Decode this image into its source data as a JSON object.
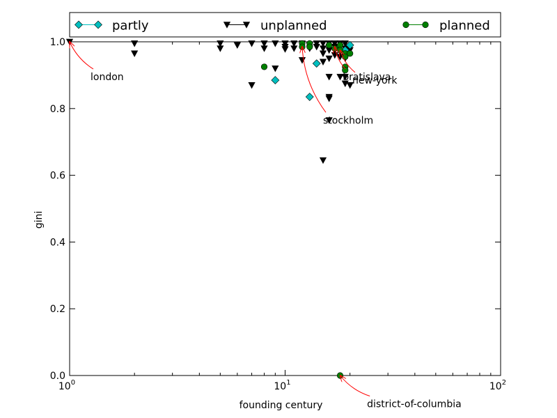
{
  "chart_data": {
    "type": "scatter",
    "title": "",
    "xlabel": "founding century",
    "ylabel": "gini",
    "xscale": "log",
    "xlim": [
      1,
      100
    ],
    "ylim": [
      0.0,
      1.0
    ],
    "x_tick_labels": [
      {
        "value": 1,
        "base": "10",
        "exp": "0"
      },
      {
        "value": 10,
        "base": "10",
        "exp": "1"
      },
      {
        "value": 100,
        "base": "10",
        "exp": "2"
      }
    ],
    "y_ticks": [
      0.0,
      0.2,
      0.4,
      0.6,
      0.8,
      1.0
    ],
    "y_tick_labels": [
      "0.0",
      "0.2",
      "0.4",
      "0.6",
      "0.8",
      "1.0"
    ],
    "grid": false,
    "legend_placement": "top, above plot",
    "legend": [
      {
        "label": "partly",
        "series": 0
      },
      {
        "label": "unplanned",
        "series": 1
      },
      {
        "label": "planned",
        "series": 2
      }
    ],
    "series": [
      {
        "name": "partly",
        "marker": "diamond",
        "color": "#00bfbf",
        "points": [
          [
            9,
            0.885
          ],
          [
            13,
            0.835
          ],
          [
            14,
            0.935
          ],
          [
            19,
            0.975
          ],
          [
            20,
            0.99
          ]
        ]
      },
      {
        "name": "unplanned",
        "marker": "triangle-down",
        "color": "#000000",
        "points": [
          [
            1,
            1.0
          ],
          [
            2,
            0.995
          ],
          [
            2,
            0.965
          ],
          [
            5,
            0.995
          ],
          [
            5,
            0.98
          ],
          [
            6,
            0.99
          ],
          [
            7,
            0.995
          ],
          [
            7,
            0.87
          ],
          [
            8,
            0.995
          ],
          [
            8,
            0.98
          ],
          [
            9,
            0.995
          ],
          [
            9,
            0.92
          ],
          [
            10,
            0.995
          ],
          [
            10,
            0.985
          ],
          [
            10,
            0.978
          ],
          [
            11,
            0.995
          ],
          [
            11,
            0.98
          ],
          [
            12,
            0.995
          ],
          [
            12,
            0.945
          ],
          [
            13,
            0.99
          ],
          [
            13,
            0.98
          ],
          [
            14,
            0.995
          ],
          [
            14,
            0.985
          ],
          [
            15,
            0.995
          ],
          [
            15,
            0.98
          ],
          [
            15,
            0.965
          ],
          [
            15,
            0.94
          ],
          [
            15,
            0.645
          ],
          [
            16,
            0.995
          ],
          [
            16,
            0.985
          ],
          [
            16,
            0.975
          ],
          [
            16,
            0.95
          ],
          [
            16,
            0.895
          ],
          [
            16,
            0.835
          ],
          [
            16,
            0.83
          ],
          [
            16,
            0.765
          ],
          [
            17,
            0.995
          ],
          [
            17,
            0.985
          ],
          [
            17,
            0.975
          ],
          [
            17,
            0.96
          ],
          [
            18,
            0.995
          ],
          [
            18,
            0.985
          ],
          [
            18,
            0.97
          ],
          [
            18,
            0.955
          ],
          [
            18,
            0.895
          ],
          [
            19,
            0.995
          ],
          [
            19,
            0.98
          ],
          [
            19,
            0.965
          ],
          [
            19,
            0.95
          ],
          [
            19,
            0.895
          ],
          [
            19,
            0.875
          ],
          [
            20,
            0.975
          ],
          [
            20,
            0.87
          ]
        ]
      },
      {
        "name": "planned",
        "marker": "circle",
        "color": "#007f00",
        "points": [
          [
            8,
            0.925
          ],
          [
            12,
            0.995
          ],
          [
            12,
            0.985
          ],
          [
            13,
            0.995
          ],
          [
            13,
            0.985
          ],
          [
            16,
            0.99
          ],
          [
            17,
            0.98
          ],
          [
            18,
            0.99
          ],
          [
            18,
            0.975
          ],
          [
            19,
            0.965
          ],
          [
            19,
            0.955
          ],
          [
            19,
            0.925
          ],
          [
            19,
            0.915
          ],
          [
            20,
            0.965
          ],
          [
            18,
            0.0
          ]
        ]
      }
    ],
    "annotations": [
      {
        "text": "london",
        "x": 1,
        "y": 1.0,
        "text_x": 1.25,
        "text_y": 0.885
      },
      {
        "text": "bratislava",
        "x": 17,
        "y": 0.985,
        "text_x": 18.5,
        "text_y": 0.885
      },
      {
        "text": "new-york",
        "x": 18,
        "y": 0.975,
        "text_x": 20.5,
        "text_y": 0.875
      },
      {
        "text": "stockholm",
        "x": 12,
        "y": 0.985,
        "text_x": 15,
        "text_y": 0.755
      },
      {
        "text": "district-of-columbia",
        "x": 18,
        "y": 0.0,
        "text_x": 24,
        "text_y": -0.095
      }
    ],
    "colors": {
      "annotation_arrow": "#ff0000",
      "axes": "#000000"
    }
  }
}
